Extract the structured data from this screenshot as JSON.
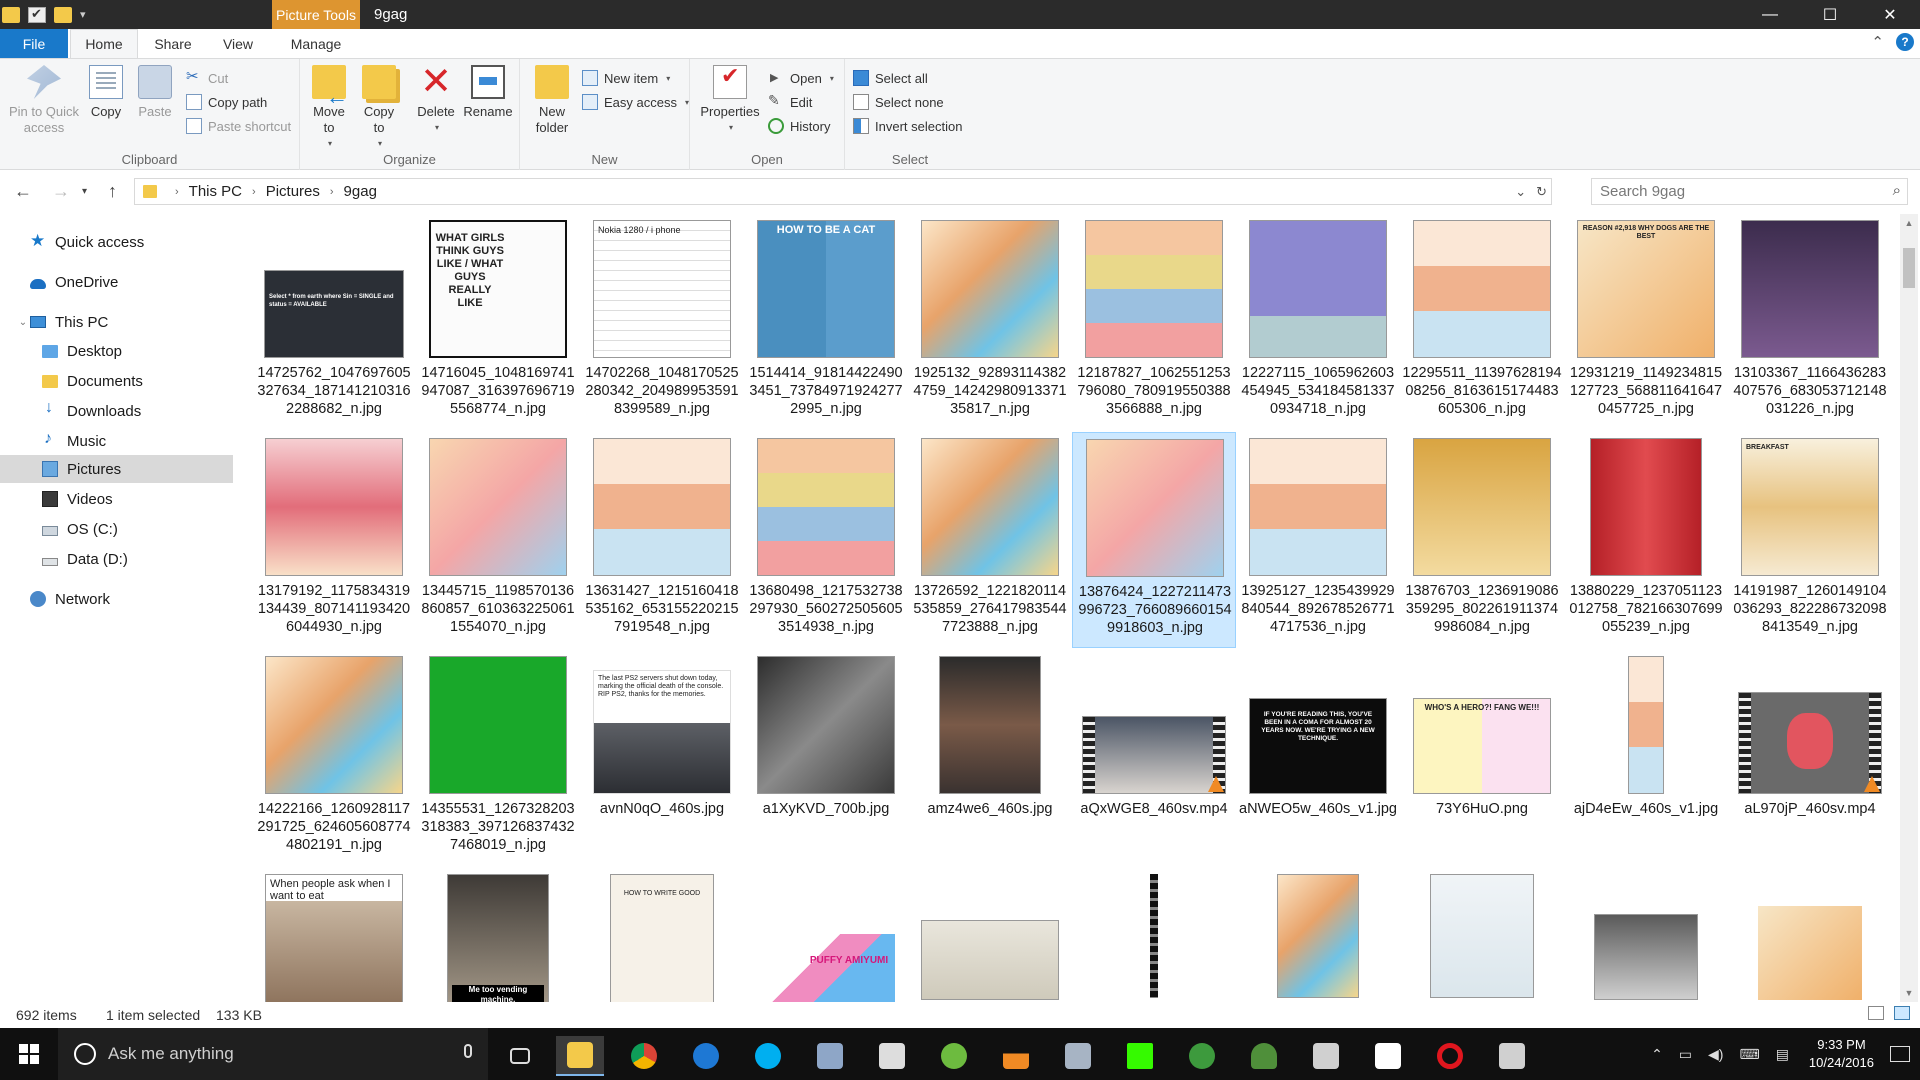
{
  "window": {
    "title": "9gag",
    "context_tab": "Picture Tools",
    "controls": {
      "minimize": "—",
      "maximize": "☐",
      "close": "✕"
    }
  },
  "tabs": [
    "File",
    "Home",
    "Share",
    "View",
    "Manage"
  ],
  "active_tab": "Home",
  "ribbon": {
    "clipboard": {
      "label": "Clipboard",
      "pin": "Pin to Quick access",
      "copy": "Copy",
      "paste": "Paste",
      "cut": "Cut",
      "copy_path": "Copy path",
      "paste_shortcut": "Paste shortcut"
    },
    "organize": {
      "label": "Organize",
      "move_to": "Move to",
      "copy_to": "Copy to",
      "delete": "Delete",
      "rename": "Rename"
    },
    "new": {
      "label": "New",
      "new_folder": "New folder",
      "new_item": "New item",
      "easy_access": "Easy access"
    },
    "open": {
      "label": "Open",
      "properties": "Properties",
      "open": "Open",
      "edit": "Edit",
      "history": "History"
    },
    "select": {
      "label": "Select",
      "select_all": "Select all",
      "select_none": "Select none",
      "invert_selection": "Invert selection"
    }
  },
  "address": {
    "crumbs": [
      "This PC",
      "Pictures",
      "9gag"
    ],
    "search_placeholder": "Search 9gag"
  },
  "nav_pane": {
    "items": [
      {
        "label": "Quick access",
        "icon": "star-icon"
      },
      {
        "label": "OneDrive",
        "icon": "cloud-icon"
      },
      {
        "label": "This PC",
        "icon": "computer-icon"
      },
      {
        "label": "Desktop",
        "icon": "folder-icon"
      },
      {
        "label": "Documents",
        "icon": "documents-icon"
      },
      {
        "label": "Downloads",
        "icon": "downloads-icon"
      },
      {
        "label": "Music",
        "icon": "music-icon"
      },
      {
        "label": "Pictures",
        "icon": "pictures-icon",
        "selected": true
      },
      {
        "label": "Videos",
        "icon": "videos-icon"
      },
      {
        "label": "OS (C:)",
        "icon": "drive-icon"
      },
      {
        "label": "Data (D:)",
        "icon": "drive-icon"
      },
      {
        "label": "Network",
        "icon": "network-icon"
      }
    ]
  },
  "files": [
    {
      "name": "14725762_1047697605327634_1871412103162288682_n.jpg",
      "caption": "Select * from earth where Sin = SINGLE and status = AVAILABLE"
    },
    {
      "name": "14716045_1048169741947087_3163976967195568774_n.jpg",
      "caption": "WHAT GIRLS THINK GUYS LIKE / WHAT GUYS REALLY LIKE"
    },
    {
      "name": "14702268_1048170525280342_2049899535918399589_n.jpg",
      "caption": "Nokia 1280 / i phone"
    },
    {
      "name": "1514414_918144224903451_737849719242772995_n.jpg",
      "caption": "HOW TO BE A CAT"
    },
    {
      "name": "1925132_928931143824759_1424298091337135817_n.jpg",
      "caption": ""
    },
    {
      "name": "12187827_1062551253796080_7809195503883566888_n.jpg",
      "caption": ""
    },
    {
      "name": "12227115_1065962603454945_5341845813370934718_n.jpg",
      "caption": ""
    },
    {
      "name": "12295511_1139762819408256_8163615174483605306_n.jpg",
      "caption": ""
    },
    {
      "name": "12931219_1149234815127723_5688116416470457725_n.jpg",
      "caption": "REASON #2,918 WHY DOGS ARE THE BEST"
    },
    {
      "name": "13103367_1166436283407576_683053712148031226_n.jpg",
      "caption": ""
    },
    {
      "name": "13179192_1175834319134439_8071411934206044930_n.jpg",
      "caption": ""
    },
    {
      "name": "13445715_1198570136860857_6103632250611554070_n.jpg",
      "caption": ""
    },
    {
      "name": "13631427_1215160418535162_6531552202157919548_n.jpg",
      "caption": ""
    },
    {
      "name": "13680498_1217532738297930_5602725056053514938_n.jpg",
      "caption": ""
    },
    {
      "name": "13726592_1221820114535859_2764179835447723888_n.jpg",
      "caption": ""
    },
    {
      "name": "13876424_1227211473996723_7660896601549918603_n.jpg",
      "caption": "",
      "selected": true
    },
    {
      "name": "13925127_1235439929840544_8926785267714717536_n.jpg",
      "caption": ""
    },
    {
      "name": "13876703_1236919086359295_8022619113749986084_n.jpg",
      "caption": ""
    },
    {
      "name": "13880229_1237051123012758_782166307699055239_n.jpg",
      "caption": ""
    },
    {
      "name": "14191987_1260149104036293_8222867320988413549_n.jpg",
      "caption": "BREAKFAST"
    },
    {
      "name": "14222166_1260928117291725_6246056087744802191_n.jpg",
      "caption": ""
    },
    {
      "name": "14355531_1267328203318383_3971268374327468019_n.jpg",
      "caption": ""
    },
    {
      "name": "avnN0qO_460s.jpg",
      "caption": "The last PS2 servers shut down today, marking the official death of the console. RIP PS2, thanks for the memories."
    },
    {
      "name": "a1XyKVD_700b.jpg",
      "caption": ""
    },
    {
      "name": "amz4we6_460s.jpg",
      "caption": ""
    },
    {
      "name": "aQxWGE8_460sv.mp4",
      "caption": ""
    },
    {
      "name": "aNWEO5w_460s_v1.jpg",
      "caption": "IF YOU'RE READING THIS, YOU'VE BEEN IN A COMA FOR ALMOST 20 YEARS NOW. WE'RE TRYING A NEW TECHNIQUE."
    },
    {
      "name": "73Y6HuO.png",
      "caption": "WHO'S A HERO?! FANG WE!!!"
    },
    {
      "name": "ajD4eEw_460s_v1.jpg",
      "caption": ""
    },
    {
      "name": "aL970jP_460sv.mp4",
      "caption": ""
    },
    {
      "name": "",
      "caption": "When people ask when I want to eat"
    },
    {
      "name": "",
      "caption": "Me too vending machine."
    },
    {
      "name": "",
      "caption": "HOW TO WRITE GOOD"
    },
    {
      "name": "",
      "caption": "PUFFY AMIYUMI"
    },
    {
      "name": "",
      "caption": ""
    },
    {
      "name": "",
      "caption": ""
    },
    {
      "name": "",
      "caption": ""
    },
    {
      "name": "",
      "caption": ""
    },
    {
      "name": "",
      "caption": ""
    },
    {
      "name": "",
      "caption": ""
    }
  ],
  "status": {
    "count": "692 items",
    "selection": "1 item selected",
    "size": "133 KB"
  },
  "taskbar": {
    "search_placeholder": "Ask me anything",
    "time": "9:33 PM",
    "date": "10/24/2016"
  }
}
